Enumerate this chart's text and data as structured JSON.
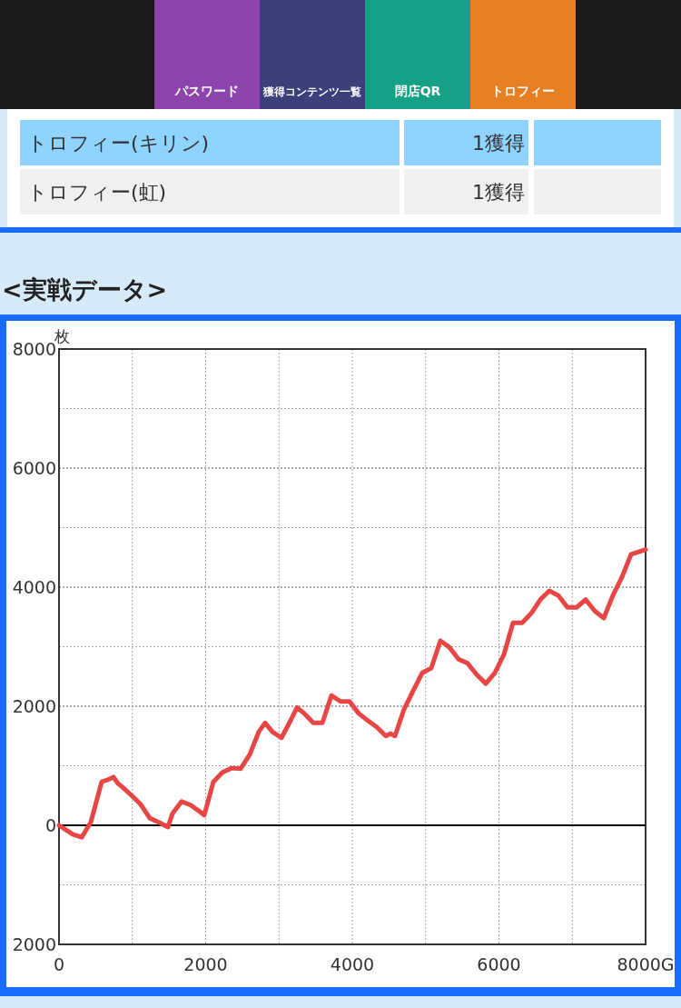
{
  "chart_data": {
    "type": "line",
    "title": "<実戦データ>",
    "ylabel": "枚",
    "annotations": [
      "パスワード",
      "獲得コンテンツ一覧",
      "閉店QR",
      "トロフィー",
      "トロフィー(キリン)",
      "1獲得",
      "トロフィー(虹)",
      "1獲得"
    ],
    "series": [
      {
        "color": "#e84545",
        "x": [
          0,
          186,
          310,
          433,
          582,
          656,
          743,
          805,
          867,
          991,
          1115,
          1238,
          1362,
          1486,
          1548,
          1672,
          1796,
          1920,
          1981,
          2105,
          2229,
          2353,
          2477,
          2601,
          2724,
          2811,
          2910,
          3034,
          3158,
          3245,
          3344,
          3468,
          3592,
          3715,
          3839,
          3963,
          4087,
          4211,
          4334,
          4458,
          4520,
          4582,
          4706,
          4830,
          4954,
          5077,
          5201,
          5325,
          5449,
          5573,
          5697,
          5820,
          5944,
          6068,
          6192,
          6316,
          6440,
          6563,
          6687,
          6811,
          6935,
          7059,
          7183,
          7307,
          7430,
          7554,
          7678,
          7802,
          7926,
          8000
        ],
        "values": [
          0,
          -150,
          -200,
          50,
          730,
          760,
          810,
          700,
          640,
          500,
          350,
          120,
          50,
          -30,
          200,
          400,
          340,
          230,
          170,
          730,
          890,
          960,
          950,
          1190,
          1570,
          1720,
          1570,
          1470,
          1760,
          1980,
          1880,
          1720,
          1720,
          2180,
          2080,
          2080,
          1880,
          1760,
          1650,
          1500,
          1540,
          1500,
          1950,
          2260,
          2560,
          2640,
          3100,
          2990,
          2790,
          2720,
          2530,
          2380,
          2560,
          2870,
          3400,
          3400,
          3560,
          3790,
          3940,
          3860,
          3660,
          3660,
          3790,
          3600,
          3480,
          3860,
          4170,
          4550,
          4600,
          4630
        ]
      }
    ],
    "xlim": [
      0,
      8000
    ],
    "ylim": [
      -2000,
      8000
    ],
    "xticks": [
      0,
      {
        "value": 1000,
        "label": null
      },
      2000,
      {
        "value": 3000,
        "label": null
      },
      4000,
      {
        "value": 5000,
        "label": null
      },
      6000,
      {
        "value": 7000,
        "label": null
      },
      {
        "value": 8000,
        "label": "8000G"
      }
    ],
    "yticks": [
      {
        "value": -2000,
        "label": "2000"
      },
      {
        "value": -1000,
        "label": null
      },
      0,
      {
        "value": 1000,
        "label": null
      },
      2000,
      {
        "value": 3000,
        "label": null
      },
      4000,
      {
        "value": 5000,
        "label": null
      },
      6000,
      {
        "value": 7000,
        "label": null
      },
      8000
    ],
    "grid": true,
    "line_style": "solid",
    "marker": "none",
    "ref_lines": [
      {
        "axis": "y",
        "value": 0,
        "color": "#000000"
      }
    ]
  }
}
